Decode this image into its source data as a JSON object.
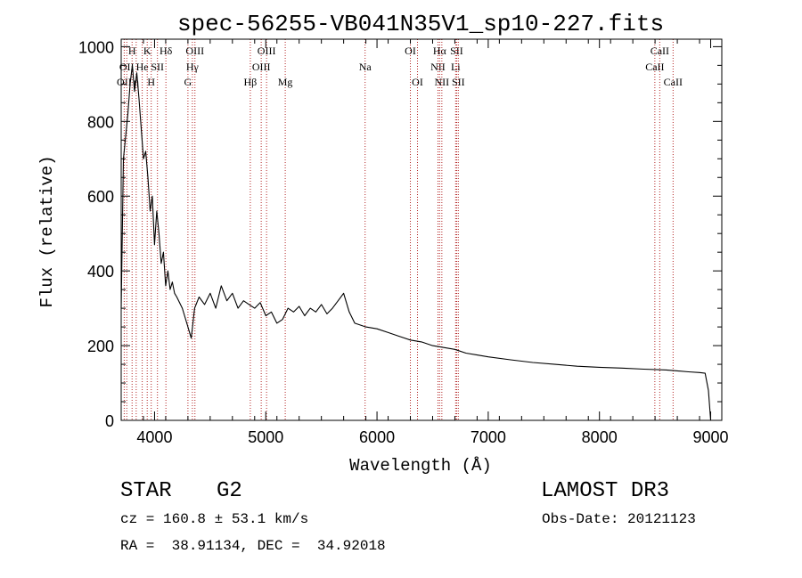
{
  "chart_data": {
    "type": "line",
    "title": "spec-56255-VB041N35V1_sp10-227.fits",
    "xlabel": "Wavelength (Å)",
    "ylabel": "Flux (relative)",
    "xlim": [
      3700,
      9100
    ],
    "ylim": [
      0,
      1020
    ],
    "xticks": [
      4000,
      5000,
      6000,
      7000,
      8000,
      9000
    ],
    "yticks": [
      0,
      200,
      400,
      600,
      800,
      1000
    ],
    "grid": false,
    "line_color": "#000000",
    "marker_color": "#b22222",
    "series": [
      {
        "name": "flux",
        "x": [
          3700,
          3720,
          3740,
          3760,
          3780,
          3800,
          3820,
          3840,
          3860,
          3880,
          3900,
          3920,
          3940,
          3960,
          3980,
          4000,
          4020,
          4040,
          4060,
          4080,
          4100,
          4120,
          4140,
          4160,
          4180,
          4200,
          4250,
          4300,
          4330,
          4360,
          4400,
          4450,
          4500,
          4550,
          4600,
          4650,
          4700,
          4750,
          4800,
          4850,
          4900,
          4950,
          5000,
          5050,
          5100,
          5150,
          5200,
          5250,
          5300,
          5350,
          5400,
          5450,
          5500,
          5550,
          5600,
          5650,
          5700,
          5750,
          5800,
          5850,
          5900,
          6000,
          6100,
          6200,
          6300,
          6400,
          6500,
          6600,
          6700,
          6800,
          6900,
          7000,
          7200,
          7400,
          7600,
          7800,
          8000,
          8200,
          8400,
          8600,
          8800,
          8900,
          8950,
          8980,
          9000
        ],
        "y": [
          300,
          700,
          760,
          820,
          900,
          950,
          880,
          930,
          860,
          780,
          700,
          720,
          650,
          560,
          600,
          470,
          560,
          500,
          420,
          450,
          360,
          400,
          350,
          370,
          340,
          330,
          300,
          250,
          220,
          300,
          330,
          310,
          340,
          300,
          360,
          320,
          340,
          300,
          320,
          310,
          300,
          315,
          280,
          290,
          260,
          270,
          300,
          290,
          305,
          280,
          300,
          290,
          310,
          285,
          300,
          320,
          340,
          290,
          260,
          255,
          250,
          245,
          235,
          225,
          215,
          210,
          200,
          195,
          190,
          180,
          175,
          170,
          162,
          155,
          150,
          145,
          142,
          140,
          137,
          135,
          130,
          128,
          126,
          80,
          0
        ]
      }
    ],
    "line_markers": [
      {
        "wavelength": 3727,
        "label": "OII",
        "row": 2
      },
      {
        "wavelength": 3750,
        "label": "OII",
        "row": 1
      },
      {
        "wavelength": 3798,
        "label": "H",
        "row": 0
      },
      {
        "wavelength": 3835,
        "label": "η",
        "row": 2
      },
      {
        "wavelength": 3889,
        "label": "He",
        "row": 1
      },
      {
        "wavelength": 3934,
        "label": "K",
        "row": 0
      },
      {
        "wavelength": 3970,
        "label": "H",
        "row": 2
      },
      {
        "wavelength": 4026,
        "label": "SII",
        "row": 1
      },
      {
        "wavelength": 4102,
        "label": "Hδ",
        "row": 0
      },
      {
        "wavelength": 4300,
        "label": "G",
        "row": 2
      },
      {
        "wavelength": 4340,
        "label": "Hγ",
        "row": 1
      },
      {
        "wavelength": 4363,
        "label": "OIII",
        "row": 0
      },
      {
        "wavelength": 4861,
        "label": "Hβ",
        "row": 2
      },
      {
        "wavelength": 4959,
        "label": "OIII",
        "row": 1
      },
      {
        "wavelength": 5007,
        "label": "OIII",
        "row": 0
      },
      {
        "wavelength": 5175,
        "label": "Mg",
        "row": 2
      },
      {
        "wavelength": 5893,
        "label": "Na",
        "row": 1
      },
      {
        "wavelength": 6300,
        "label": "OI",
        "row": 0
      },
      {
        "wavelength": 6364,
        "label": "OI",
        "row": 2
      },
      {
        "wavelength": 6548,
        "label": "NII",
        "row": 1
      },
      {
        "wavelength": 6563,
        "label": "Hα",
        "row": 0
      },
      {
        "wavelength": 6583,
        "label": "NII",
        "row": 2
      },
      {
        "wavelength": 6707,
        "label": "Li",
        "row": 1
      },
      {
        "wavelength": 6716,
        "label": "SII",
        "row": 0
      },
      {
        "wavelength": 6731,
        "label": "SII",
        "row": 2
      },
      {
        "wavelength": 8498,
        "label": "CaII",
        "row": 1
      },
      {
        "wavelength": 8542,
        "label": "CaII",
        "row": 0
      },
      {
        "wavelength": 8662,
        "label": "CaII",
        "row": 2
      }
    ]
  },
  "info": {
    "object_class": "STAR",
    "subclass": "G2",
    "survey": "LAMOST DR3",
    "redshift": "cz = 160.8 ± 53.1 km/s",
    "obs_date": "Obs-Date: 20121123",
    "coords": "RA =  38.91134, DEC =  34.92018"
  }
}
